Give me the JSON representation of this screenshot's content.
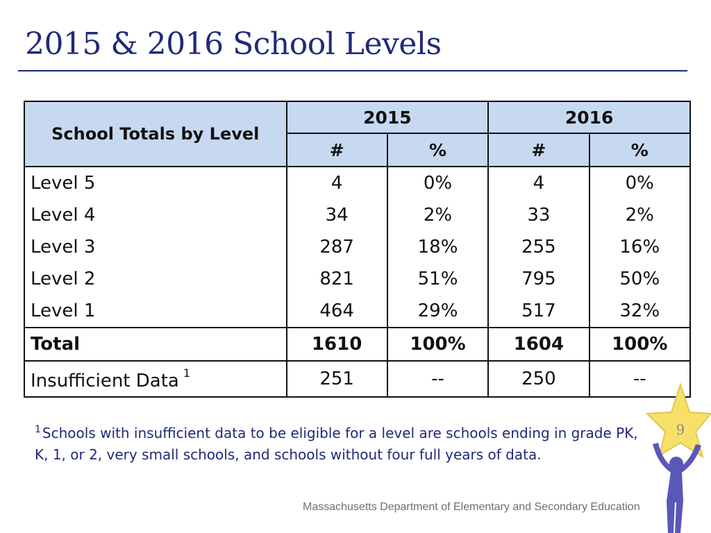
{
  "title": "2015 & 2016 School Levels",
  "table": {
    "header_label": "School Totals by Level",
    "years": [
      "2015",
      "2016"
    ],
    "subheaders": [
      "#",
      "%",
      "#",
      "%"
    ],
    "rows": [
      {
        "label": "Level 5",
        "values": [
          "4",
          "0%",
          "4",
          "0%"
        ]
      },
      {
        "label": "Level 4",
        "values": [
          "34",
          "2%",
          "33",
          "2%"
        ]
      },
      {
        "label": "Level 3",
        "values": [
          "287",
          "18%",
          "255",
          "16%"
        ]
      },
      {
        "label": "Level 2",
        "values": [
          "821",
          "51%",
          "795",
          "50%"
        ]
      },
      {
        "label": "Level 1",
        "values": [
          "464",
          "29%",
          "517",
          "32%"
        ]
      }
    ],
    "total": {
      "label": "Total",
      "values": [
        "1610",
        "100%",
        "1604",
        "100%"
      ]
    },
    "insufficient": {
      "label": "Insufficient Data",
      "marker": "1",
      "values": [
        "251",
        "--",
        "250",
        "--"
      ]
    }
  },
  "footnote": {
    "marker": "1",
    "text": "Schools with insufficient data to be eligible for a level are schools ending in grade PK, K, 1, or 2, very small schools, and schools without four full years of data."
  },
  "footer": "Massachusetts Department of Elementary and Secondary Education",
  "page_number": "9",
  "colors": {
    "title": "#1f2a78",
    "header_fill": "#c6d9f1",
    "star": "#f7e06a",
    "figure": "#5b57b8"
  }
}
